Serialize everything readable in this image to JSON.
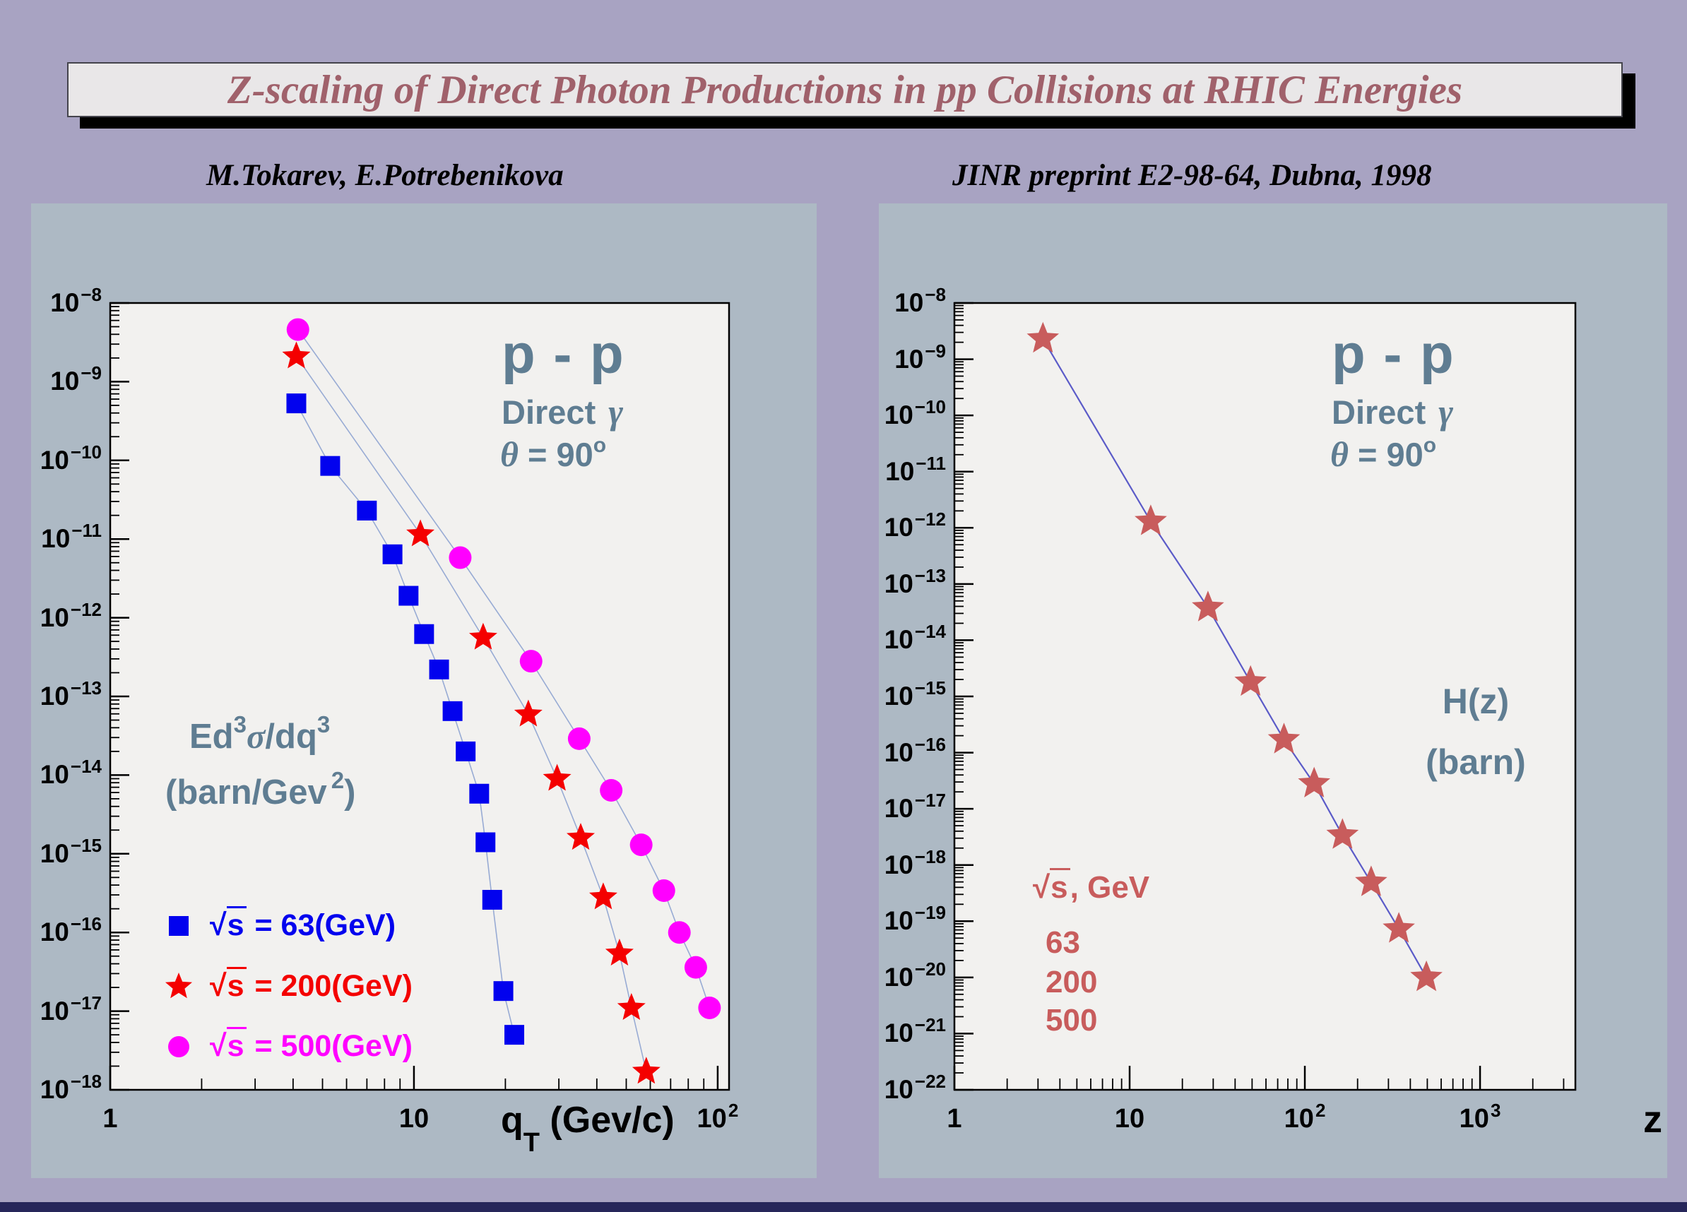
{
  "colors": {
    "page_bg": "#a8a3c2",
    "bottom_strip": "#26265a",
    "banner_bg": "#e9e7e8",
    "banner_border": "#44444c",
    "banner_shadow": "#000000",
    "banner_text": "#a0616b",
    "panel_bg": "#adb9c4",
    "plot_bg": "#f2f1ef",
    "frame": "#000000",
    "steel_text": "#5f7d92"
  },
  "banner": {
    "title": "Z-scaling of Direct Photon Productions in pp Collisions at RHIC Energies"
  },
  "header": {
    "authors": "M.Tokarev, E.Potrebenikova",
    "preprint": "JINR preprint E2-98-64, Dubna, 1998"
  },
  "left_chart": {
    "annotations": {
      "reaction": "p - p",
      "process": "Direct",
      "gamma": "γ",
      "theta": "θ",
      "angle_eq": " = 90",
      "deg": "o",
      "formula": {
        "p1": "Ed",
        "e1": "3",
        "sigma": "σ",
        "p2": "/dq",
        "e2": "3"
      },
      "unit": {
        "p1": "(barn/Gev",
        "e1": "2",
        "p2": ")"
      },
      "xtitle": {
        "p1": "q",
        "sub": "T",
        "p2": " (Gev/c)"
      }
    },
    "legend": [
      {
        "sqrt": "√",
        "s": "s",
        "rest": " = 63(GeV)",
        "color": "#0202ee",
        "marker": "square"
      },
      {
        "sqrt": "√",
        "s": "s",
        "rest": " = 200(GeV)",
        "color": "#f40000",
        "marker": "star"
      },
      {
        "sqrt": "√",
        "s": "s",
        "rest": " = 500(GeV)",
        "color": "#ff00ff",
        "marker": "circle"
      }
    ]
  },
  "right_chart": {
    "annotations": {
      "reaction": "p - p",
      "process": "Direct",
      "gamma": "γ",
      "theta": "θ",
      "angle_eq": " = 90",
      "deg": "o",
      "hz": "H(z)",
      "barn": "(barn)",
      "xtitle": "z"
    },
    "legend": {
      "sqrt": "√",
      "s": "s",
      "rest": ", GeV",
      "color": "#c85c5c",
      "values": [
        "63",
        "200",
        "500"
      ]
    }
  },
  "chart_data": [
    {
      "type": "scatter",
      "title": "p - p, Direct γ, θ = 90°",
      "xlabel": "q_T (Gev/c)",
      "ylabel": "Ed^3σ/dq^3 (barn/Gev^2)",
      "xscale": "log",
      "yscale": "log",
      "xlim": [
        1,
        109
      ],
      "ylim": [
        1e-18,
        1e-08
      ],
      "x_tick_exponents": [
        0,
        1,
        2
      ],
      "y_tick_exponents": [
        -8,
        -9,
        -10,
        -11,
        -12,
        -13,
        -14,
        -15,
        -16,
        -17,
        -18
      ],
      "grid": false,
      "legend_position": "lower-left",
      "series": [
        {
          "name": "√s = 63(GeV)",
          "marker": "square",
          "color": "#0202ee",
          "line_color": "#98abd4",
          "x": [
            4.1,
            5.3,
            7.0,
            8.5,
            9.6,
            10.8,
            12.1,
            13.4,
            14.8,
            16.4,
            17.2,
            18.1,
            19.7,
            21.4
          ],
          "y": [
            5.3e-10,
            8.5e-11,
            2.3e-11,
            6.4e-12,
            1.9e-12,
            6.2e-13,
            2.2e-13,
            6.5e-14,
            2e-14,
            5.8e-15,
            1.4e-15,
            2.6e-16,
            1.8e-17,
            5e-18
          ]
        },
        {
          "name": "√s = 200(GeV)",
          "marker": "star",
          "color": "#f40000",
          "line_color": "#98abd4",
          "x": [
            4.1,
            10.5,
            16.9,
            23.8,
            29.6,
            35.4,
            42.0,
            47.5,
            52.0,
            58.2
          ],
          "y": [
            2.1e-09,
            1.15e-11,
            5.6e-13,
            5.9e-14,
            9e-15,
            1.6e-15,
            2.8e-16,
            5.4e-17,
            1.1e-17,
            1.7e-18
          ]
        },
        {
          "name": "√s = 500(GeV)",
          "marker": "circle",
          "color": "#ff00ff",
          "line_color": "#98abd4",
          "x": [
            4.15,
            14.2,
            24.3,
            35.0,
            44.6,
            56.0,
            66.5,
            74.8,
            84.7,
            94.0
          ],
          "y": [
            4.6e-09,
            5.8e-12,
            2.8e-13,
            2.9e-14,
            6.4e-15,
            1.3e-15,
            3.4e-16,
            1e-16,
            3.6e-17,
            1.1e-17
          ]
        }
      ]
    },
    {
      "type": "scatter",
      "title": "p - p, Direct γ, θ = 90°, H(z)",
      "xlabel": "z",
      "ylabel": "H(z) (barn)",
      "xscale": "log",
      "yscale": "log",
      "xlim": [
        1,
        3500
      ],
      "ylim": [
        1e-22,
        1e-08
      ],
      "x_tick_exponents": [
        0,
        1,
        2,
        3
      ],
      "y_tick_exponents": [
        -8,
        -9,
        -10,
        -11,
        -12,
        -13,
        -14,
        -15,
        -16,
        -17,
        -18,
        -19,
        -20,
        -21,
        -22
      ],
      "grid": false,
      "legend_position": "lower-left",
      "series": [
        {
          "name": "H(z), √s = 63, 200, 500 GeV",
          "marker": "star",
          "color": "#c85c5c",
          "line_color": "#5b5bc8",
          "x": [
            3.2,
            13.2,
            28,
            49,
            76,
            113,
            164,
            239,
            344,
            494
          ],
          "y": [
            2.3e-09,
            1.3e-12,
            3.8e-14,
            1.8e-15,
            1.7e-16,
            2.8e-17,
            3.4e-18,
            4.9e-19,
            7.3e-20,
            1e-20
          ]
        }
      ]
    }
  ]
}
